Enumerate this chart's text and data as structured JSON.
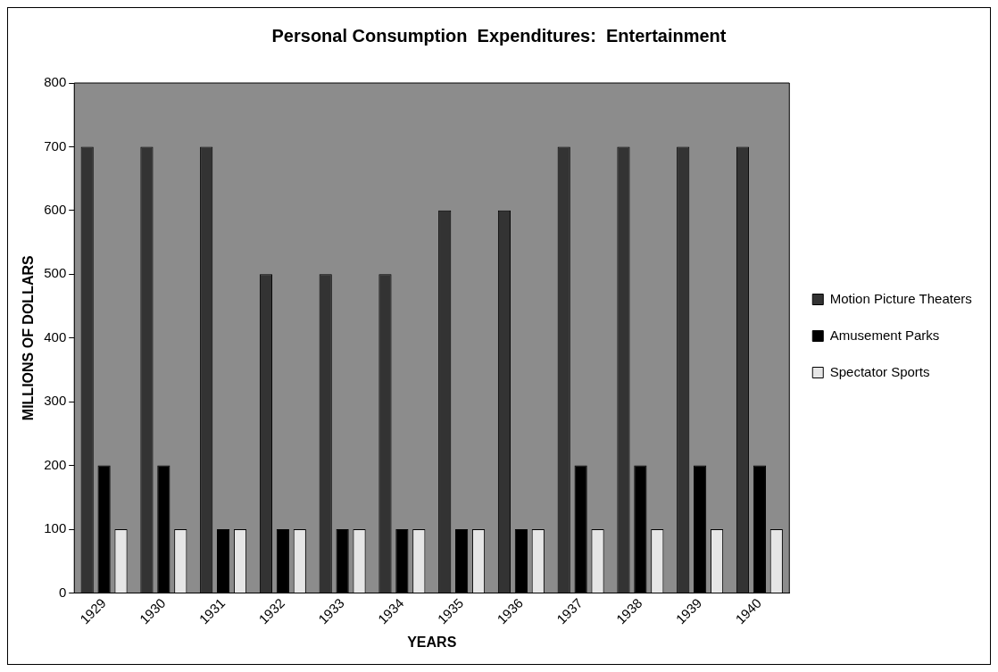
{
  "chart_data": {
    "type": "bar",
    "title": "Personal Consumption  Expenditures:  Entertainment",
    "xlabel": "YEARS",
    "ylabel": "MILLIONS OF DOLLARS",
    "categories": [
      "1929",
      "1930",
      "1931",
      "1932",
      "1933",
      "1934",
      "1935",
      "1936",
      "1937",
      "1938",
      "1939",
      "1940"
    ],
    "series": [
      {
        "name": "Motion Picture Theaters",
        "color": "#333333",
        "values": [
          700,
          700,
          700,
          500,
          500,
          500,
          600,
          600,
          700,
          700,
          700,
          700
        ]
      },
      {
        "name": "Amusement Parks",
        "color": "#000000",
        "values": [
          200,
          200,
          100,
          100,
          100,
          100,
          100,
          100,
          200,
          200,
          200,
          200
        ]
      },
      {
        "name": "Spectator Sports",
        "color": "#e6e6e6",
        "values": [
          100,
          100,
          100,
          100,
          100,
          100,
          100,
          100,
          100,
          100,
          100,
          100
        ]
      }
    ],
    "ylim": [
      0,
      800
    ],
    "yticks": [
      0,
      100,
      200,
      300,
      400,
      500,
      600,
      700,
      800
    ],
    "grid": false,
    "legend": "right"
  }
}
